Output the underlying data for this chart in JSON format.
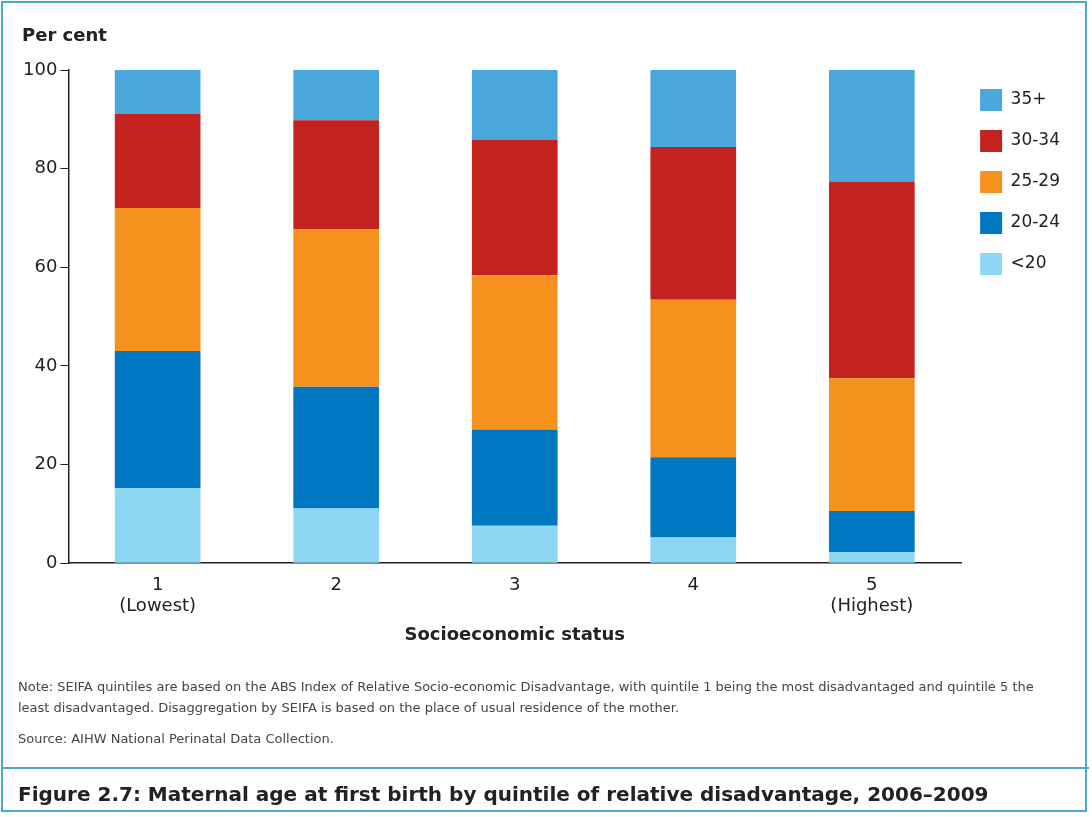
{
  "chart_data": {
    "type": "bar",
    "stacked": true,
    "ylabel": "Per cent",
    "xlabel": "Socioeconomic status",
    "title": "Figure 2.7: Maternal age at first birth by quintile of relative disadvantage, 2006–2009",
    "categories": [
      "1\n(Lowest)",
      "2",
      "3",
      "4",
      "5\n(Highest)"
    ],
    "series": [
      {
        "name": "<20",
        "color": "#8dd7f5",
        "values": [
          15.2,
          11.1,
          7.6,
          5.2,
          2.2
        ]
      },
      {
        "name": "20-24",
        "color": "#0077c0",
        "values": [
          27.8,
          24.7,
          19.5,
          16.3,
          8.4
        ]
      },
      {
        "name": "25-29",
        "color": "#f5921e",
        "values": [
          29.0,
          31.9,
          31.3,
          31.9,
          26.9
        ]
      },
      {
        "name": "30-34",
        "color": "#c4221f",
        "values": [
          19.1,
          22.1,
          27.5,
          31.0,
          39.9
        ]
      },
      {
        "name": "35+",
        "color": "#4aa8dc",
        "values": [
          8.9,
          10.2,
          14.1,
          15.6,
          22.6
        ]
      }
    ],
    "ylim": [
      0,
      100
    ],
    "yticks": [
      0,
      20,
      40,
      60,
      80,
      100
    ],
    "grid": false,
    "legend": "right",
    "annotations": [
      "Note: SEIFA quintiles are based on the ABS Index of Relative Socio-economic Disadvantage, with quintile 1 being the most disadvantaged and quintile 5 the least disadvantaged. Disaggregation by SEIFA is based on the place of usual residence of the mother.",
      "Source: AIHW National Perinatal Data Collection."
    ]
  }
}
